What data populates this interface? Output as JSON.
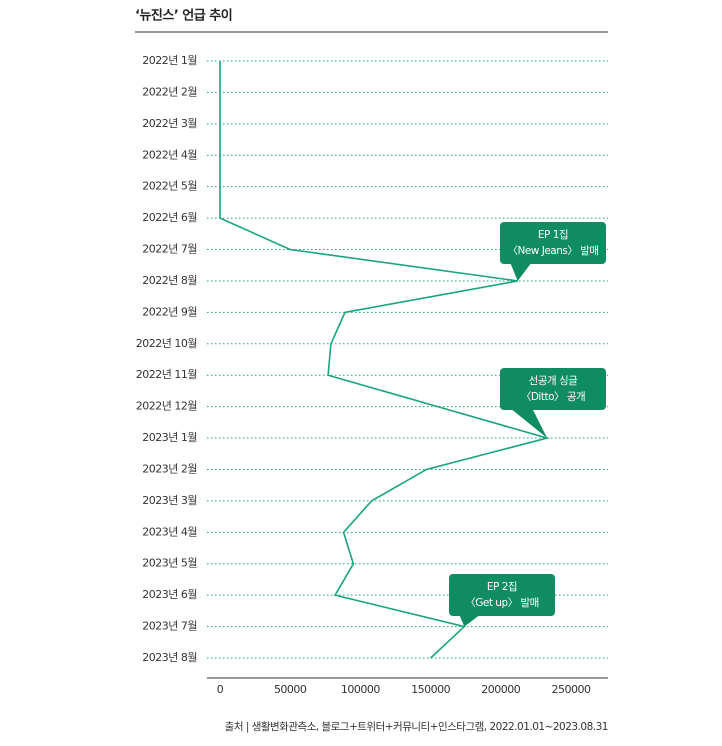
{
  "chart_data": {
    "type": "line",
    "title": "‘뉴진스’ 언급 추이",
    "categories": [
      "2022년 1월",
      "2022년 2월",
      "2022년 3월",
      "2022년 4월",
      "2022년 5월",
      "2022년 6월",
      "2022년 7월",
      "2022년 8월",
      "2022년 9월",
      "2022년 10월",
      "2022년 11월",
      "2022년 12월",
      "2023년 1월",
      "2023년 2월",
      "2023년 3월",
      "2023년 4월",
      "2023년 5월",
      "2023년 6월",
      "2023년 7월",
      "2023년 8월"
    ],
    "values": [
      0,
      0,
      0,
      0,
      0,
      0,
      50000,
      212000,
      89000,
      79000,
      77000,
      155000,
      233000,
      147000,
      108000,
      88000,
      95000,
      82000,
      174000,
      150000
    ],
    "color": "#19a47f",
    "xlim": [
      0,
      275000
    ],
    "xticks": [
      0,
      50000,
      100000,
      150000,
      200000,
      250000
    ],
    "grid": true,
    "annotations": [
      [
        "EP 1집",
        "〈New Jeans〉 발매"
      ],
      [
        "선공개 싱글",
        "〈Ditto〉 공개"
      ],
      [
        "EP 2집",
        "〈Get up〉 발매"
      ]
    ],
    "source": "출처 | 생활변화관측소, 블로그+트위터+커뮤니티+인스타그램, 2022.01.01~2023.08.31"
  }
}
